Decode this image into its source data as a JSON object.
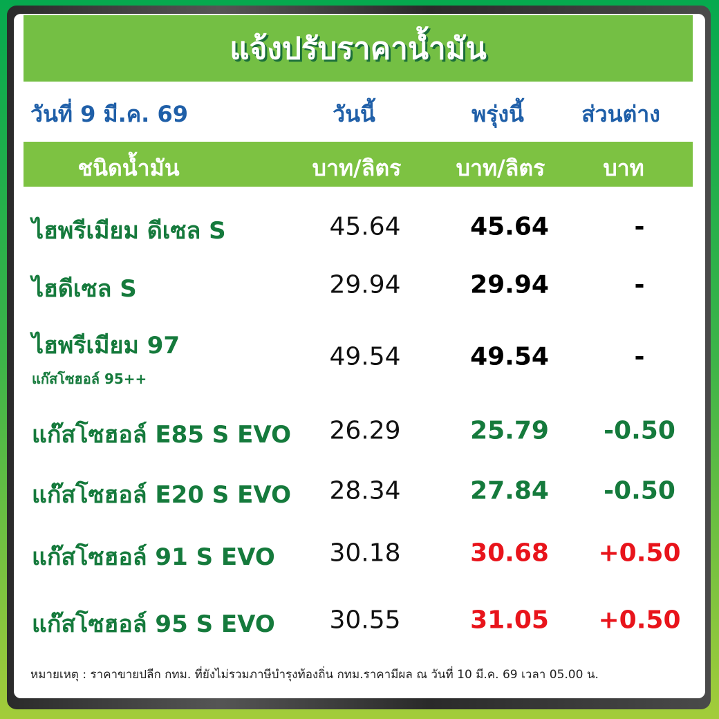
{
  "title": "แจ้งปรับราคาน้ำมัน",
  "date_label": "วันที่ 9 มี.ค. 69",
  "col_today": "วันนี้",
  "col_tomorrow": "พรุ่งนี้",
  "col_diff": "ส่วนต่าง",
  "hdr_type": "ชนิดน้ำมัน",
  "hdr_today_unit": "บาท/ลิตร",
  "hdr_tomorrow_unit": "บาท/ลิตร",
  "hdr_diff_unit": "บาท",
  "colors": {
    "same": "#000000",
    "down": "#157a3c",
    "up": "#e8141b"
  },
  "rows": [
    {
      "name": "ไฮพรีเมียม ดีเซล S",
      "sub": "",
      "today": "45.64",
      "tomorrow": "45.64",
      "diff": "-",
      "trend": "same"
    },
    {
      "name": "ไฮดีเซล S",
      "sub": "",
      "today": "29.94",
      "tomorrow": "29.94",
      "diff": "-",
      "trend": "same"
    },
    {
      "name": "ไฮพรีเมียม 97",
      "sub": "แก๊สโซฮอล์ 95++",
      "today": "49.54",
      "tomorrow": "49.54",
      "diff": "-",
      "trend": "same"
    },
    {
      "name": "แก๊สโซฮอล์ E85 S EVO",
      "sub": "",
      "today": "26.29",
      "tomorrow": "25.79",
      "diff": "-0.50",
      "trend": "down"
    },
    {
      "name": "แก๊สโซฮอล์ E20 S EVO",
      "sub": "",
      "today": "28.34",
      "tomorrow": "27.84",
      "diff": "-0.50",
      "trend": "down"
    },
    {
      "name": "แก๊สโซฮอล์ 91 S EVO",
      "sub": "",
      "today": "30.18",
      "tomorrow": "30.68",
      "diff": "+0.50",
      "trend": "up"
    },
    {
      "name": "แก๊สโซฮอล์ 95 S EVO",
      "sub": "",
      "today": "30.55",
      "tomorrow": "31.05",
      "diff": "+0.50",
      "trend": "up"
    }
  ],
  "note": "หมายเหตุ :  ราคาขายปลีก กทม. ที่ยังไม่รวมภาษีบำรุงท้องถิ่น  กทม.ราคามีผล ณ วันที่ 10 มี.ค. 69 เวลา 05.00 น."
}
